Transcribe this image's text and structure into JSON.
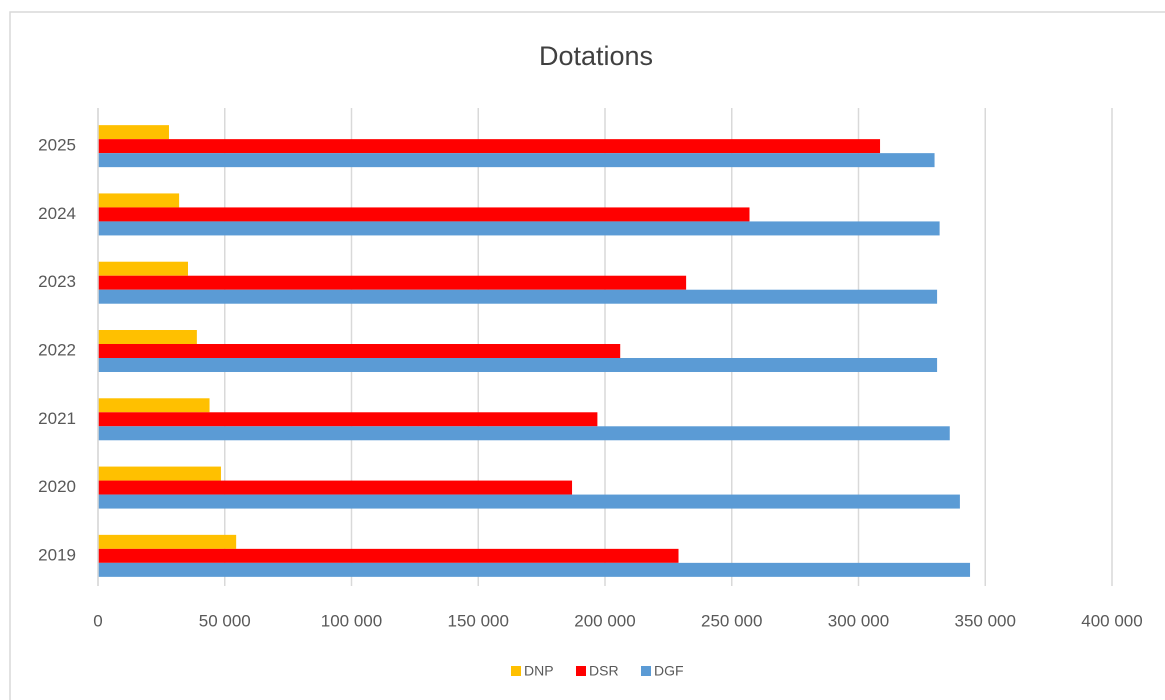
{
  "chart_data": {
    "type": "bar",
    "orientation": "horizontal",
    "title": "Dotations",
    "categories": [
      "2019",
      "2020",
      "2021",
      "2022",
      "2023",
      "2024",
      "2025"
    ],
    "series": [
      {
        "name": "DNP",
        "color": "#ffc000",
        "values": [
          54500,
          48500,
          44000,
          39000,
          35500,
          32000,
          28000
        ]
      },
      {
        "name": "DSR",
        "color": "#ff0000",
        "values": [
          229000,
          187000,
          197000,
          206000,
          232000,
          257000,
          308500
        ]
      },
      {
        "name": "DGF",
        "color": "#5b9bd5",
        "values": [
          344000,
          340000,
          336000,
          331000,
          331000,
          332000,
          330000
        ]
      }
    ],
    "xlim": [
      0,
      400000
    ],
    "xticks": [
      0,
      {
        "value": 50000,
        "label": "50 000"
      },
      {
        "value": 100000,
        "label": "100 000"
      },
      {
        "value": 150000,
        "label": "150 000"
      },
      {
        "value": 200000,
        "label": "200 000"
      },
      {
        "value": 250000,
        "label": "250 000"
      },
      {
        "value": 300000,
        "label": "300 000"
      },
      {
        "value": 350000,
        "label": "350 000"
      },
      {
        "value": 400000,
        "label": "400 000"
      }
    ],
    "grid": true,
    "legend": "bottom"
  }
}
